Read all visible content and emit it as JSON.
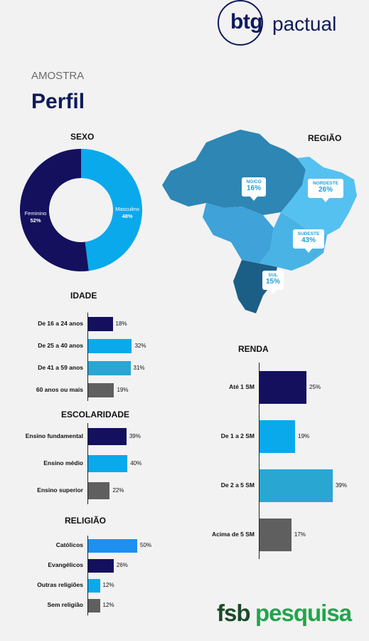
{
  "header": {
    "logo_btg": "btg",
    "logo_pactual": "pactual",
    "subtitle": "AMOSTRA",
    "title": "Perfil"
  },
  "footer": {
    "logo_fsb": "fsb",
    "logo_pesquisa": "pesquisa"
  },
  "colors": {
    "navy": "#14105e",
    "sky": "#0aa9ec",
    "teal": "#2aa6d2",
    "gray": "#5f5f5f",
    "blue": "#1e90f0"
  },
  "regiao": {
    "title": "REGIÃO",
    "pins": [
      {
        "name": "NO/CO",
        "pct": "16%"
      },
      {
        "name": "NORDESTE",
        "pct": "26%"
      },
      {
        "name": "SUDESTE",
        "pct": "43%"
      },
      {
        "name": "SUL",
        "pct": "15%"
      }
    ]
  },
  "chart_data": [
    {
      "type": "pie",
      "title": "SEXO",
      "labels": [
        "Feminino",
        "Masculino"
      ],
      "values": [
        52,
        48
      ],
      "display": [
        "52%",
        "48%"
      ],
      "colors": [
        "#14105e",
        "#0aa9ec"
      ]
    },
    {
      "type": "bar",
      "orientation": "horizontal",
      "title": "IDADE",
      "categories": [
        "De 16 a 24 anos",
        "De 25 a 40 anos",
        "De 41 a 59 anos",
        "60 anos ou mais"
      ],
      "values": [
        18,
        32,
        31,
        19
      ],
      "display": [
        "18%",
        "32%",
        "31%",
        "19%"
      ],
      "colors": [
        "#14105e",
        "#0aa9ec",
        "#2aa6d2",
        "#5f5f5f"
      ]
    },
    {
      "type": "bar",
      "orientation": "horizontal",
      "title": "ESCOLARIDADE",
      "categories": [
        "Ensino fundamental",
        "Ensino médio",
        "Ensino superior"
      ],
      "values": [
        39,
        40,
        22
      ],
      "display": [
        "39%",
        "40%",
        "22%"
      ],
      "colors": [
        "#14105e",
        "#0aa9ec",
        "#5f5f5f"
      ]
    },
    {
      "type": "bar",
      "orientation": "horizontal",
      "title": "RELIGIÃO",
      "categories": [
        "Católicos",
        "Evangélicos",
        "Outras religiões",
        "Sem religião"
      ],
      "values": [
        50,
        26,
        12,
        12
      ],
      "display": [
        "50%",
        "26%",
        "12%",
        "12%"
      ],
      "colors": [
        "#1e90f0",
        "#14105e",
        "#0aa9ec",
        "#5f5f5f"
      ]
    },
    {
      "type": "bar",
      "orientation": "horizontal",
      "title": "RENDA",
      "categories": [
        "Até 1 SM",
        "De 1 a 2 SM",
        "De 2 a 5 SM",
        "Acima de 5 SM"
      ],
      "values": [
        25,
        19,
        39,
        17
      ],
      "display": [
        "25%",
        "19%",
        "39%",
        "17%"
      ],
      "colors": [
        "#14105e",
        "#0aa9ec",
        "#2aa6d2",
        "#5f5f5f"
      ]
    }
  ]
}
